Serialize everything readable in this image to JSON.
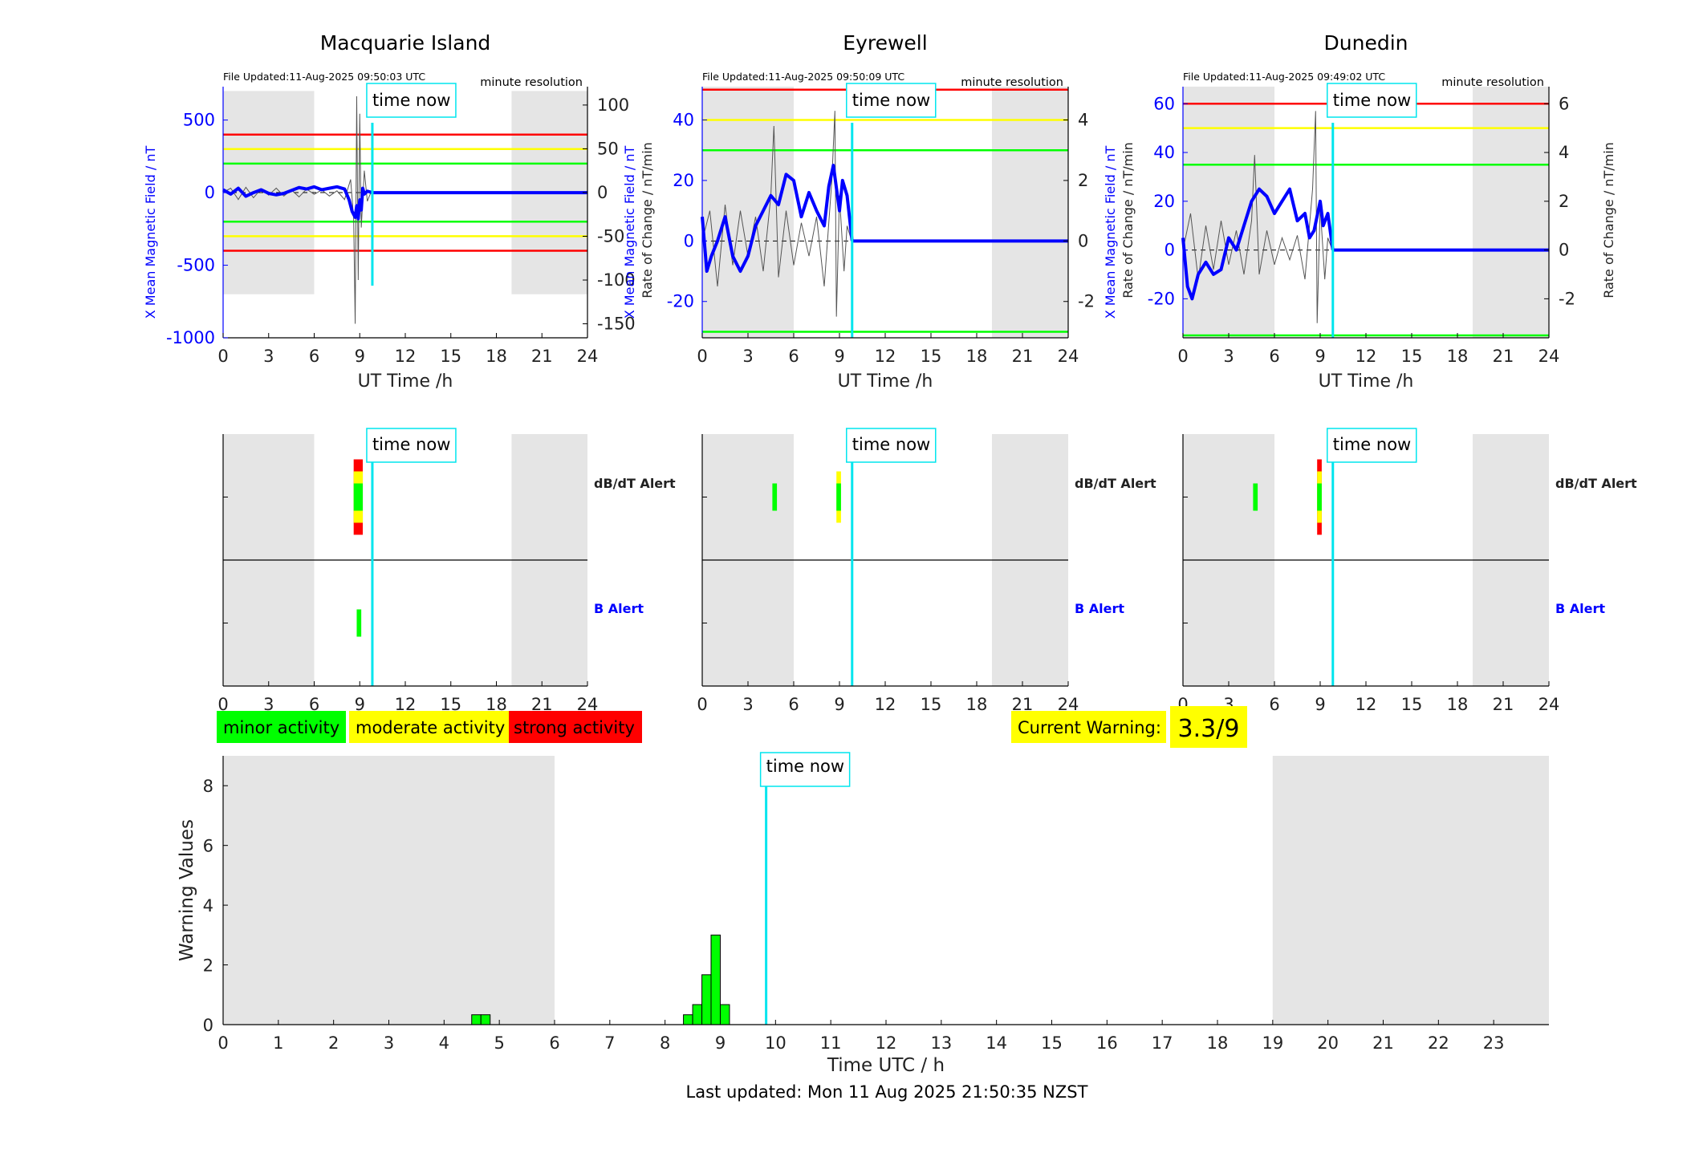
{
  "chart_data": [
    {
      "type": "line",
      "title": "Macquarie Island",
      "file_updated": "File Updated:11-Aug-2025 09:50:03 UTC",
      "resolution": "minute resolution",
      "xlabel": "UT Time /h",
      "ylabel": "X Mean Magnetic Field / nT",
      "y2label": "Rate of Change / nT/min",
      "xlim": [
        0,
        24
      ],
      "xticks": [
        0,
        3,
        6,
        9,
        12,
        15,
        18,
        21,
        24
      ],
      "ylim": [
        -1000,
        730
      ],
      "yticks": [
        -1000,
        -500,
        0,
        500
      ],
      "y2lim": [
        -166,
        121
      ],
      "y2ticks": [
        -150,
        -100,
        -50,
        0,
        50,
        100
      ],
      "shaded": [
        [
          0,
          6
        ],
        [
          19,
          24
        ]
      ],
      "shade_ylim": [
        -700,
        700
      ],
      "thresholds": [
        {
          "y": 400,
          "color": "#ff0000"
        },
        {
          "y": 300,
          "color": "#ffff00"
        },
        {
          "y": 200,
          "color": "#00ff00"
        },
        {
          "y": -200,
          "color": "#00ff00"
        },
        {
          "y": -300,
          "color": "#ffff00"
        },
        {
          "y": -400,
          "color": "#ff0000"
        }
      ],
      "time_now": 9.83,
      "time_now_label": "time now",
      "field_series": {
        "x": [
          0,
          0.5,
          1,
          1.5,
          2,
          2.5,
          3,
          3.5,
          4,
          4.5,
          5,
          5.5,
          6,
          6.5,
          7,
          7.5,
          8,
          8.3,
          8.5,
          8.7,
          8.8,
          8.9,
          9,
          9.1,
          9.2,
          9.3,
          9.5,
          9.83
        ],
        "y": [
          20,
          -10,
          30,
          -25,
          0,
          20,
          -5,
          -15,
          -5,
          15,
          35,
          25,
          40,
          20,
          30,
          40,
          25,
          -50,
          -130,
          -170,
          -90,
          -180,
          -50,
          -120,
          30,
          -10,
          10,
          0
        ]
      },
      "field_flat": {
        "x": [
          9.83,
          24
        ],
        "y": [
          0,
          0
        ]
      },
      "roc_series": {
        "x": [
          0,
          0.5,
          1,
          1.5,
          2,
          2.5,
          3,
          3.5,
          4,
          4.5,
          5,
          5.5,
          6,
          6.5,
          7,
          7.5,
          8,
          8.4,
          8.6,
          8.7,
          8.8,
          8.9,
          9,
          9.1,
          9.3,
          9.5,
          9.8
        ],
        "y": [
          0,
          5,
          -8,
          6,
          -6,
          4,
          -3,
          5,
          -4,
          3,
          -5,
          4,
          -2,
          3,
          -4,
          2,
          -8,
          15,
          -30,
          -150,
          110,
          -100,
          90,
          -40,
          25,
          -10,
          3
        ]
      }
    },
    {
      "type": "line",
      "title": "Eyrewell",
      "file_updated": "File Updated:11-Aug-2025 09:50:09 UTC",
      "resolution": "minute resolution",
      "xlabel": "UT Time /h",
      "ylabel": "X Mean Magnetic Field / nT",
      "y2label": "Rate of Change / nT/min",
      "xlim": [
        0,
        24
      ],
      "xticks": [
        0,
        3,
        6,
        9,
        12,
        15,
        18,
        21,
        24
      ],
      "ylim": [
        -32,
        51
      ],
      "yticks": [
        -20,
        0,
        20,
        40
      ],
      "y2lim": [
        -3.2,
        5.1
      ],
      "y2ticks": [
        -2,
        0,
        2,
        4
      ],
      "shaded": [
        [
          0,
          6
        ],
        [
          19,
          24
        ]
      ],
      "shade_ylim": [
        -32,
        51
      ],
      "thresholds": [
        {
          "y": 50,
          "color": "#ff0000"
        },
        {
          "y": 40,
          "color": "#ffff00"
        },
        {
          "y": 30,
          "color": "#00ff00"
        },
        {
          "y": -30,
          "color": "#00ff00"
        }
      ],
      "time_now": 9.83,
      "time_now_label": "time now",
      "field_series": {
        "x": [
          0,
          0.3,
          0.6,
          1,
          1.5,
          2,
          2.5,
          3,
          3.5,
          4,
          4.5,
          5,
          5.5,
          6,
          6.5,
          7,
          7.5,
          8,
          8.3,
          8.6,
          9,
          9.2,
          9.5,
          9.83
        ],
        "y": [
          8,
          -10,
          -5,
          0,
          8,
          -5,
          -10,
          -5,
          5,
          10,
          15,
          12,
          22,
          20,
          8,
          16,
          10,
          5,
          18,
          25,
          10,
          20,
          15,
          0
        ]
      },
      "field_flat": {
        "x": [
          9.83,
          24
        ],
        "y": [
          0,
          0
        ]
      },
      "roc_series": {
        "x": [
          0,
          0.5,
          1,
          1.5,
          2,
          2.5,
          3,
          3.5,
          4,
          4.5,
          4.7,
          5,
          5.5,
          6,
          6.5,
          7,
          7.5,
          8,
          8.5,
          8.7,
          8.8,
          9,
          9.3,
          9.5,
          9.8
        ],
        "y": [
          0,
          1,
          -1.5,
          1.2,
          -0.8,
          1,
          -0.5,
          0.8,
          -1,
          1.5,
          3.8,
          -1.2,
          1,
          -0.8,
          0.6,
          -0.5,
          0.8,
          -1.5,
          2,
          4.3,
          -2.5,
          1.5,
          -1,
          0.5,
          0
        ]
      }
    },
    {
      "type": "line",
      "title": "Dunedin",
      "file_updated": "File Updated:11-Aug-2025 09:49:02 UTC",
      "resolution": "minute resolution",
      "xlabel": "UT Time /h",
      "ylabel": "X Mean Magnetic Field / nT",
      "y2label": "Rate of Change / nT/min",
      "xlim": [
        0,
        24
      ],
      "xticks": [
        0,
        3,
        6,
        9,
        12,
        15,
        18,
        21,
        24
      ],
      "ylim": [
        -36,
        67
      ],
      "yticks": [
        -20,
        0,
        20,
        40,
        60
      ],
      "y2lim": [
        -3.6,
        6.7
      ],
      "y2ticks": [
        -2,
        0,
        2,
        4,
        6
      ],
      "shaded": [
        [
          0,
          6
        ],
        [
          19,
          24
        ]
      ],
      "shade_ylim": [
        -36,
        67
      ],
      "thresholds": [
        {
          "y": 60,
          "color": "#ff0000"
        },
        {
          "y": 50,
          "color": "#ffff00"
        },
        {
          "y": 35,
          "color": "#00ff00"
        },
        {
          "y": -35,
          "color": "#00ff00"
        }
      ],
      "time_now": 9.83,
      "time_now_label": "time now",
      "field_series": {
        "x": [
          0,
          0.3,
          0.6,
          1,
          1.5,
          2,
          2.5,
          3,
          3.5,
          4,
          4.5,
          5,
          5.5,
          6,
          6.5,
          7,
          7.5,
          8,
          8.3,
          8.6,
          9,
          9.2,
          9.5,
          9.83
        ],
        "y": [
          5,
          -15,
          -20,
          -10,
          -5,
          -10,
          -8,
          5,
          0,
          10,
          20,
          25,
          22,
          15,
          20,
          25,
          12,
          15,
          5,
          8,
          20,
          10,
          15,
          0
        ]
      },
      "field_flat": {
        "x": [
          9.83,
          24
        ],
        "y": [
          0,
          0
        ]
      },
      "roc_series": {
        "x": [
          0,
          0.5,
          1,
          1.5,
          2,
          2.5,
          3,
          3.5,
          4,
          4.5,
          4.7,
          5,
          5.5,
          6,
          6.5,
          7,
          7.5,
          8,
          8.5,
          8.7,
          8.8,
          9,
          9.3,
          9.5,
          9.8
        ],
        "y": [
          0,
          1.5,
          -1.2,
          1,
          -0.8,
          1.2,
          -0.6,
          0.8,
          -1,
          1.2,
          3.9,
          -1,
          0.8,
          -0.6,
          0.5,
          -0.4,
          0.6,
          -1.2,
          2.5,
          5.7,
          -3,
          1.8,
          -1.2,
          0.5,
          0
        ]
      }
    }
  ],
  "alert_panels": [
    {
      "xlim": [
        0,
        24
      ],
      "xticks": [
        0,
        3,
        6,
        9,
        12,
        15,
        18,
        21,
        24
      ],
      "shaded": [
        [
          0,
          6
        ],
        [
          19,
          24
        ]
      ],
      "dbdt_label": "dB/dT Alert",
      "b_label": "B Alert",
      "time_now": 9.83,
      "time_now_label": "time now",
      "dbdt_bars": [
        {
          "t0": 8.6,
          "t1": 9.2,
          "level": 3
        },
        {
          "t0": 8.6,
          "t1": 9.2,
          "level": 2
        },
        {
          "t0": 8.6,
          "t1": 9.2,
          "level": 1
        }
      ],
      "b_bars": [
        {
          "t0": 8.8,
          "t1": 9.1,
          "level": 1
        }
      ]
    },
    {
      "xlim": [
        0,
        24
      ],
      "xticks": [
        0,
        3,
        6,
        9,
        12,
        15,
        18,
        21,
        24
      ],
      "shaded": [
        [
          0,
          6
        ],
        [
          19,
          24
        ]
      ],
      "dbdt_label": "dB/dT Alert",
      "b_label": "B Alert",
      "time_now": 9.83,
      "time_now_label": "time now",
      "dbdt_bars": [
        {
          "t0": 4.6,
          "t1": 4.9,
          "level": 1
        },
        {
          "t0": 8.8,
          "t1": 9.1,
          "level": 2
        },
        {
          "t0": 8.8,
          "t1": 9.1,
          "level": 1
        }
      ],
      "b_bars": []
    },
    {
      "xlim": [
        0,
        24
      ],
      "xticks": [
        0,
        3,
        6,
        9,
        12,
        15,
        18,
        21,
        24
      ],
      "shaded": [
        [
          0,
          6
        ],
        [
          19,
          24
        ]
      ],
      "dbdt_label": "dB/dT Alert",
      "b_label": "B Alert",
      "time_now": 9.83,
      "time_now_label": "time now",
      "dbdt_bars": [
        {
          "t0": 4.6,
          "t1": 4.9,
          "level": 1
        },
        {
          "t0": 8.8,
          "t1": 9.1,
          "level": 3
        },
        {
          "t0": 8.8,
          "t1": 9.1,
          "level": 2
        },
        {
          "t0": 8.8,
          "t1": 9.1,
          "level": 1
        }
      ],
      "b_bars": []
    }
  ],
  "legend": [
    {
      "label": "minor activity",
      "color": "#00ff00"
    },
    {
      "label": "moderate activity",
      "color": "#ffff00"
    },
    {
      "label": "strong activity",
      "color": "#ff0000"
    }
  ],
  "current_warning": {
    "label": "Current Warning:",
    "value": "3.3/9",
    "color": "#ffff00"
  },
  "warning_chart": {
    "type": "bar",
    "xlabel": "Time UTC / h",
    "ylabel": "Warning Values",
    "xlim": [
      0,
      24
    ],
    "xticks": [
      0,
      1,
      2,
      3,
      4,
      5,
      6,
      7,
      8,
      9,
      10,
      11,
      12,
      13,
      14,
      15,
      16,
      17,
      18,
      19,
      20,
      21,
      22,
      23
    ],
    "ylim": [
      0,
      9
    ],
    "yticks": [
      0,
      2,
      4,
      6,
      8
    ],
    "shaded": [
      [
        0,
        6
      ],
      [
        19,
        24
      ]
    ],
    "time_now": 9.83,
    "time_now_label": "time now",
    "bar_color": "#00ff00",
    "bin_width": 0.1667,
    "x": [
      4.5,
      4.667,
      8.333,
      8.5,
      8.667,
      8.833,
      9.0
    ],
    "values": [
      0.33,
      0.33,
      0.33,
      0.67,
      1.67,
      3.0,
      0.67
    ]
  },
  "last_updated": "Last updated: Mon 11 Aug 2025 21:50:35 NZST"
}
